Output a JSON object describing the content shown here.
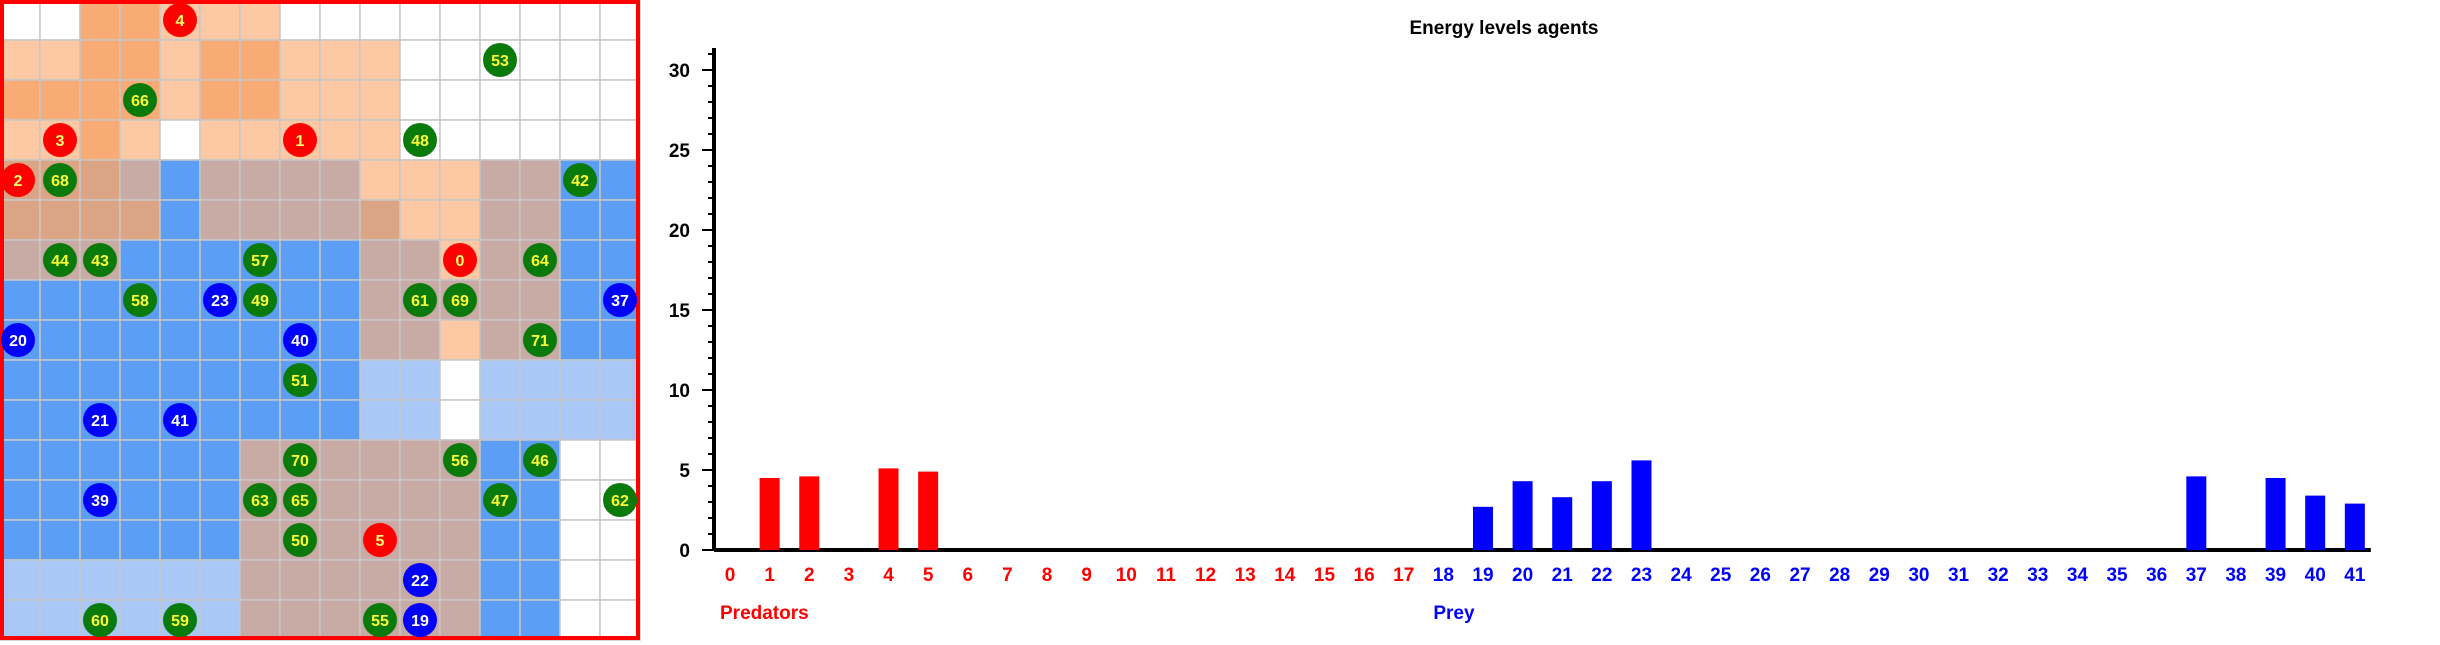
{
  "colors": {
    "predator": "#ff0000",
    "prey": "#0000ff",
    "food": "#0a7a0a",
    "predator_label": "#ffff66",
    "prey_label": "#ffffff",
    "food_label": "#ffff33",
    "border": "#ff0000",
    "predator_field": "#f7a35c",
    "prey_field": "#5599ff"
  },
  "grid": {
    "cols": 16,
    "rows": 16,
    "heat": [
      [
        0,
        0,
        3,
        3,
        2,
        2,
        2,
        0,
        0,
        0,
        0,
        0,
        0,
        0,
        0,
        0
      ],
      [
        2,
        2,
        3,
        3,
        2,
        3,
        3,
        2,
        2,
        2,
        0,
        0,
        0,
        0,
        0,
        0
      ],
      [
        3,
        3,
        3,
        3,
        2,
        3,
        3,
        2,
        2,
        2,
        0,
        0,
        0,
        0,
        0,
        0
      ],
      [
        2,
        2,
        3,
        2,
        0,
        2,
        2,
        2,
        2,
        2,
        0,
        0,
        0,
        0,
        0,
        0
      ],
      [
        5,
        5,
        5,
        6,
        4,
        6,
        6,
        6,
        6,
        2,
        2,
        2,
        6,
        6,
        4,
        4
      ],
      [
        5,
        5,
        5,
        5,
        4,
        6,
        6,
        6,
        6,
        5,
        2,
        2,
        6,
        6,
        4,
        4
      ],
      [
        6,
        6,
        6,
        4,
        4,
        4,
        4,
        4,
        4,
        6,
        6,
        2,
        6,
        6,
        4,
        4
      ],
      [
        4,
        4,
        4,
        4,
        4,
        4,
        4,
        4,
        4,
        6,
        6,
        6,
        6,
        6,
        4,
        4
      ],
      [
        4,
        4,
        4,
        4,
        4,
        4,
        4,
        4,
        4,
        6,
        6,
        2,
        6,
        6,
        4,
        4
      ],
      [
        4,
        4,
        4,
        4,
        4,
        4,
        4,
        4,
        4,
        1,
        1,
        0,
        1,
        1,
        1,
        1
      ],
      [
        4,
        4,
        4,
        4,
        4,
        4,
        4,
        4,
        4,
        1,
        1,
        0,
        1,
        1,
        1,
        1
      ],
      [
        4,
        4,
        4,
        4,
        4,
        4,
        6,
        6,
        6,
        6,
        6,
        6,
        4,
        4,
        0,
        0
      ],
      [
        4,
        4,
        4,
        4,
        4,
        4,
        6,
        6,
        6,
        6,
        6,
        6,
        4,
        4,
        0,
        0
      ],
      [
        4,
        4,
        4,
        4,
        4,
        4,
        6,
        6,
        6,
        6,
        6,
        6,
        4,
        4,
        0,
        0
      ],
      [
        1,
        1,
        1,
        1,
        1,
        1,
        6,
        6,
        6,
        6,
        6,
        6,
        4,
        4,
        0,
        0
      ],
      [
        1,
        1,
        1,
        1,
        1,
        1,
        6,
        6,
        6,
        6,
        6,
        6,
        4,
        4,
        0,
        0
      ]
    ],
    "agents": [
      {
        "id": "4",
        "kind": "predator",
        "col": 4.5,
        "row": 0.5
      },
      {
        "id": "53",
        "kind": "food",
        "col": 12.5,
        "row": 1.5
      },
      {
        "id": "66",
        "kind": "food",
        "col": 3.5,
        "row": 2.5
      },
      {
        "id": "3",
        "kind": "predator",
        "col": 1.5,
        "row": 3.5
      },
      {
        "id": "1",
        "kind": "predator",
        "col": 7.5,
        "row": 3.5
      },
      {
        "id": "48",
        "kind": "food",
        "col": 10.5,
        "row": 3.5
      },
      {
        "id": "2",
        "kind": "predator",
        "col": 0.45,
        "row": 4.5
      },
      {
        "id": "68",
        "kind": "food",
        "col": 1.5,
        "row": 4.5
      },
      {
        "id": "42",
        "kind": "food",
        "col": 14.5,
        "row": 4.5
      },
      {
        "id": "44",
        "kind": "food",
        "col": 1.5,
        "row": 6.5
      },
      {
        "id": "43",
        "kind": "food",
        "col": 2.5,
        "row": 6.5
      },
      {
        "id": "57",
        "kind": "food",
        "col": 6.5,
        "row": 6.5
      },
      {
        "id": "0",
        "kind": "predator",
        "col": 11.5,
        "row": 6.5
      },
      {
        "id": "64",
        "kind": "food",
        "col": 13.5,
        "row": 6.5
      },
      {
        "id": "58",
        "kind": "food",
        "col": 3.5,
        "row": 7.5
      },
      {
        "id": "23",
        "kind": "prey",
        "col": 5.5,
        "row": 7.5
      },
      {
        "id": "49",
        "kind": "food",
        "col": 6.5,
        "row": 7.5
      },
      {
        "id": "61",
        "kind": "food",
        "col": 10.5,
        "row": 7.5
      },
      {
        "id": "69",
        "kind": "food",
        "col": 11.5,
        "row": 7.5
      },
      {
        "id": "37",
        "kind": "prey",
        "col": 15.5,
        "row": 7.5
      },
      {
        "id": "20",
        "kind": "prey",
        "col": 0.45,
        "row": 8.5
      },
      {
        "id": "40",
        "kind": "prey",
        "col": 7.5,
        "row": 8.5
      },
      {
        "id": "71",
        "kind": "food",
        "col": 13.5,
        "row": 8.5
      },
      {
        "id": "51",
        "kind": "food",
        "col": 7.5,
        "row": 9.5
      },
      {
        "id": "21",
        "kind": "prey",
        "col": 2.5,
        "row": 10.5
      },
      {
        "id": "41",
        "kind": "prey",
        "col": 4.5,
        "row": 10.5
      },
      {
        "id": "70",
        "kind": "food",
        "col": 7.5,
        "row": 11.5
      },
      {
        "id": "56",
        "kind": "food",
        "col": 11.5,
        "row": 11.5
      },
      {
        "id": "46",
        "kind": "food",
        "col": 13.5,
        "row": 11.5
      },
      {
        "id": "39",
        "kind": "prey",
        "col": 2.5,
        "row": 12.5
      },
      {
        "id": "63",
        "kind": "food",
        "col": 6.5,
        "row": 12.5
      },
      {
        "id": "65",
        "kind": "food",
        "col": 7.5,
        "row": 12.5
      },
      {
        "id": "47",
        "kind": "food",
        "col": 12.5,
        "row": 12.5
      },
      {
        "id": "62",
        "kind": "food",
        "col": 15.5,
        "row": 12.5
      },
      {
        "id": "50",
        "kind": "food",
        "col": 7.5,
        "row": 13.5
      },
      {
        "id": "5",
        "kind": "predator",
        "col": 9.5,
        "row": 13.5
      },
      {
        "id": "22",
        "kind": "prey",
        "col": 10.5,
        "row": 14.5
      },
      {
        "id": "60",
        "kind": "food",
        "col": 2.5,
        "row": 15.5
      },
      {
        "id": "59",
        "kind": "food",
        "col": 4.5,
        "row": 15.5
      },
      {
        "id": "55",
        "kind": "food",
        "col": 9.5,
        "row": 15.5
      },
      {
        "id": "19",
        "kind": "prey",
        "col": 10.5,
        "row": 15.5
      }
    ]
  },
  "chart_data": {
    "type": "bar",
    "title": "Energy levels agents",
    "xlabel": "",
    "ylabel": "",
    "ylim": [
      0,
      31
    ],
    "yticks": [
      "0",
      "5",
      "10",
      "15",
      "20",
      "25",
      "30"
    ],
    "groups": [
      "Predators",
      "Prey"
    ],
    "categories": [
      "0",
      "1",
      "2",
      "3",
      "4",
      "5",
      "6",
      "7",
      "8",
      "9",
      "10",
      "11",
      "12",
      "13",
      "14",
      "15",
      "16",
      "17",
      "18",
      "19",
      "20",
      "21",
      "22",
      "23",
      "24",
      "25",
      "26",
      "27",
      "28",
      "29",
      "30",
      "31",
      "32",
      "33",
      "34",
      "35",
      "36",
      "37",
      "38",
      "39",
      "40",
      "41"
    ],
    "category_group": [
      0,
      0,
      0,
      0,
      0,
      0,
      0,
      0,
      0,
      0,
      0,
      0,
      0,
      0,
      0,
      0,
      0,
      0,
      1,
      1,
      1,
      1,
      1,
      1,
      1,
      1,
      1,
      1,
      1,
      1,
      1,
      1,
      1,
      1,
      1,
      1,
      1,
      1,
      1,
      1,
      1,
      1
    ],
    "values": [
      0,
      4.5,
      4.6,
      0,
      5.1,
      4.9,
      0,
      0,
      0,
      0,
      0,
      0,
      0,
      0,
      0,
      0,
      0,
      0,
      0,
      2.7,
      4.3,
      3.3,
      4.3,
      5.6,
      0,
      0,
      0,
      0,
      0,
      0,
      0,
      0,
      0,
      0,
      0,
      0,
      0,
      4.6,
      0,
      4.5,
      3.4,
      2.9
    ],
    "grid": false,
    "legend": "none"
  }
}
